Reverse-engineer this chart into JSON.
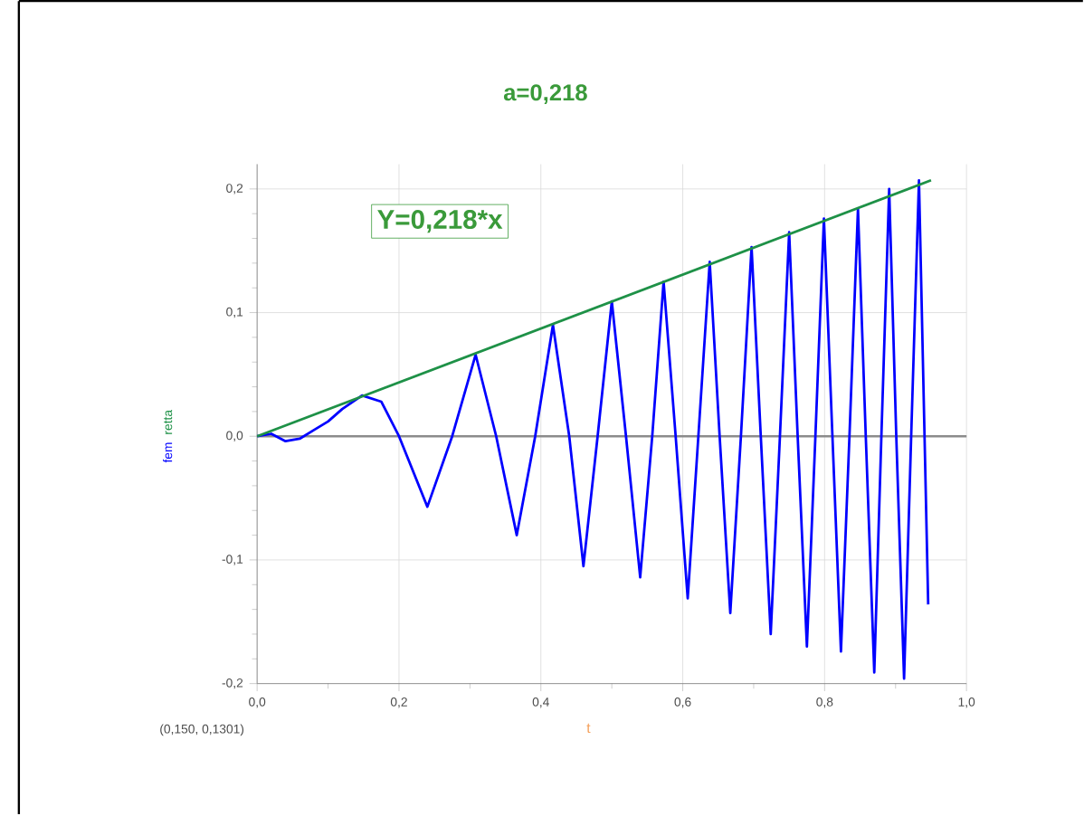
{
  "chart_data": {
    "type": "line",
    "title": "a=0,218",
    "xlabel": "t",
    "annotations": [
      "Y=0,218*x",
      "(0,150, 0,1301)"
    ],
    "xlim": [
      0,
      1.0
    ],
    "ylim": [
      -0.2,
      0.22
    ],
    "xticks": [
      {
        "value": 0,
        "label": "0,0"
      },
      {
        "value": 0.2,
        "label": "0,2"
      },
      {
        "value": 0.4,
        "label": "0,4"
      },
      {
        "value": 0.6,
        "label": "0,6"
      },
      {
        "value": 0.8,
        "label": "0,8"
      },
      {
        "value": 1.0,
        "label": "1,0"
      }
    ],
    "yticks": [
      {
        "value": -0.2,
        "label": "-0,2"
      },
      {
        "value": -0.1,
        "label": "-0,1"
      },
      {
        "value": 0,
        "label": "0,0"
      },
      {
        "value": 0.1,
        "label": "0,1"
      },
      {
        "value": 0.2,
        "label": "0,2"
      }
    ],
    "grid": true,
    "ref_lines": [
      {
        "axis": "y",
        "value": 0,
        "color": "#8c8c8c"
      }
    ],
    "series": [
      {
        "name": "fem",
        "color": "#0000ff",
        "x": [
          0,
          0.02,
          0.04,
          0.06,
          0.08,
          0.1,
          0.12,
          0.148,
          0.175,
          0.2,
          0.24,
          0.275,
          0.308,
          0.337,
          0.366,
          0.392,
          0.417,
          0.44,
          0.46,
          0.48,
          0.5,
          0.52,
          0.54,
          0.557,
          0.573,
          0.59,
          0.607,
          0.622,
          0.638,
          0.652,
          0.667,
          0.682,
          0.697,
          0.71,
          0.724,
          0.737,
          0.75,
          0.762,
          0.775,
          0.787,
          0.799,
          0.811,
          0.823,
          0.835,
          0.847,
          0.858,
          0.87,
          0.88,
          0.891,
          0.901,
          0.912,
          0.922,
          0.933,
          0.946
        ],
        "values": [
          0,
          0.002,
          -0.004,
          -0.002,
          0.005,
          0.012,
          0.022,
          0.033,
          0.028,
          0,
          -0.057,
          0,
          0.066,
          0,
          -0.08,
          0,
          0.09,
          0,
          -0.105,
          0,
          0.109,
          0,
          -0.114,
          0,
          0.125,
          0,
          -0.131,
          0,
          0.141,
          0,
          -0.143,
          0,
          0.153,
          0,
          -0.16,
          0,
          0.165,
          0,
          -0.17,
          0,
          0.176,
          0,
          -0.174,
          0,
          0.184,
          0,
          -0.191,
          0,
          0.2,
          0,
          -0.196,
          0,
          0.207,
          -0.136
        ]
      },
      {
        "name": "retta",
        "color": "#1e9147",
        "x": [
          0,
          0.95
        ],
        "values": [
          0,
          0.207
        ]
      }
    ]
  }
}
